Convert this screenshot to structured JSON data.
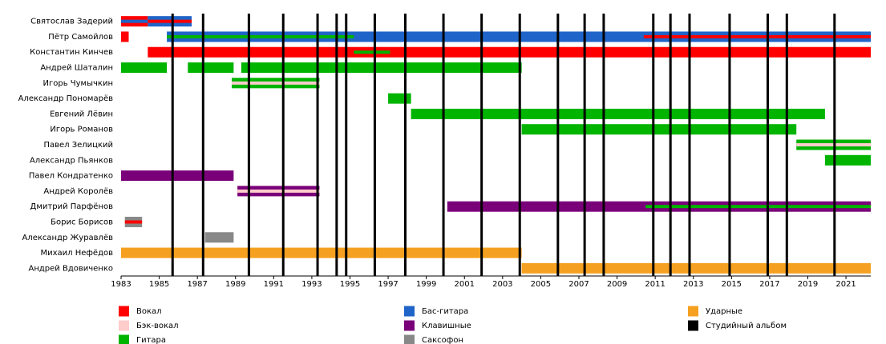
{
  "chart_data": {
    "type": "timeline",
    "xlim": [
      1983,
      2022.3
    ],
    "xticks": [
      1983,
      1985,
      1987,
      1989,
      1991,
      1993,
      1995,
      1997,
      1999,
      2001,
      2003,
      2005,
      2007,
      2009,
      2011,
      2013,
      2015,
      2017,
      2019,
      2021
    ],
    "members": [
      {
        "name": "Святослав Задерий",
        "bars": [
          {
            "start": 1983,
            "end": 1984.4,
            "color": "#ff0000"
          },
          {
            "start": 1984.4,
            "end": 1986.7,
            "color": "#1f64c8"
          },
          {
            "start": 1983,
            "end": 1984.4,
            "color": "#1f64c8",
            "thin": true
          },
          {
            "start": 1984.4,
            "end": 1986.7,
            "color": "#ff0000",
            "thin": true
          }
        ]
      },
      {
        "name": "Пётр Самойлов",
        "bars": [
          {
            "start": 1983,
            "end": 1983.4,
            "color": "#ff0000"
          },
          {
            "start": 1985.4,
            "end": 2022.3,
            "color": "#1f64c8"
          },
          {
            "start": 1985.4,
            "end": 1995.2,
            "color": "#00b400",
            "thin": true
          },
          {
            "start": 2010.4,
            "end": 2022.3,
            "color": "#ff0000",
            "thin": true
          }
        ]
      },
      {
        "name": "Константин Кинчев",
        "bars": [
          {
            "start": 1984.4,
            "end": 2022.3,
            "color": "#ff0000"
          },
          {
            "start": 1995.2,
            "end": 1997.1,
            "color": "#00b400",
            "thin": true
          }
        ]
      },
      {
        "name": "Андрей Шаталин",
        "bars": [
          {
            "start": 1983,
            "end": 1985.4,
            "color": "#00b400"
          },
          {
            "start": 1986.5,
            "end": 1988.9,
            "color": "#00b400"
          },
          {
            "start": 1989.3,
            "end": 2004.0,
            "color": "#00b400"
          }
        ]
      },
      {
        "name": "Игорь Чумычкин",
        "bars": [
          {
            "start": 1988.8,
            "end": 1993.4,
            "color": "#00b400"
          },
          {
            "start": 1988.8,
            "end": 1993.4,
            "color": "#ffcccc",
            "thin": true
          }
        ]
      },
      {
        "name": "Александр Пономарёв",
        "bars": [
          {
            "start": 1997.0,
            "end": 1998.2,
            "color": "#00b400"
          }
        ]
      },
      {
        "name": "Евгений Лёвин",
        "bars": [
          {
            "start": 1998.2,
            "end": 2019.9,
            "color": "#00b400"
          }
        ]
      },
      {
        "name": "Игорь Романов",
        "bars": [
          {
            "start": 2004.0,
            "end": 2018.4,
            "color": "#00b400"
          }
        ]
      },
      {
        "name": "Павел Зелицкий",
        "bars": [
          {
            "start": 2018.4,
            "end": 2022.3,
            "color": "#00b400"
          },
          {
            "start": 2018.4,
            "end": 2022.3,
            "color": "#ffcccc",
            "thin": true
          }
        ]
      },
      {
        "name": "Александр Пьянков",
        "bars": [
          {
            "start": 2019.9,
            "end": 2022.3,
            "color": "#00b400"
          }
        ]
      },
      {
        "name": "Павел Кондратенко",
        "bars": [
          {
            "start": 1983,
            "end": 1988.9,
            "color": "#7a007a"
          }
        ]
      },
      {
        "name": "Андрей Королёв",
        "bars": [
          {
            "start": 1989.1,
            "end": 1993.4,
            "color": "#7a007a"
          },
          {
            "start": 1989.1,
            "end": 1993.4,
            "color": "#ffcccc",
            "thin": true
          }
        ]
      },
      {
        "name": "Дмитрий Парфёнов",
        "bars": [
          {
            "start": 2000.1,
            "end": 2022.3,
            "color": "#7a007a"
          },
          {
            "start": 2010.5,
            "end": 2022.3,
            "color": "#00b400",
            "thin": true
          }
        ]
      },
      {
        "name": "Борис Борисов",
        "bars": [
          {
            "start": 1983.2,
            "end": 1984.1,
            "color": "#888888"
          },
          {
            "start": 1983.2,
            "end": 1984.1,
            "color": "#ff0000",
            "thin": true
          }
        ]
      },
      {
        "name": "Александр Журавлёв",
        "bars": [
          {
            "start": 1987.4,
            "end": 1988.9,
            "color": "#888888"
          }
        ]
      },
      {
        "name": "Михаил Нефёдов",
        "bars": [
          {
            "start": 1983,
            "end": 2004.0,
            "color": "#f5a020"
          }
        ]
      },
      {
        "name": "Андрей Вдовиченко",
        "bars": [
          {
            "start": 2004.0,
            "end": 2022.3,
            "color": "#f5a020"
          }
        ]
      }
    ],
    "albums": {
      "color": "#000000",
      "years": [
        1985.7,
        1987.3,
        1989.7,
        1991.5,
        1993.3,
        1994.3,
        1994.8,
        1996.3,
        1997.9,
        1999.9,
        2001.9,
        2003.9,
        2005.9,
        2007.3,
        2008.3,
        2010.9,
        2011.8,
        2012.8,
        2014.9,
        2016.9,
        2017.9,
        2020.4
      ]
    },
    "legend": [
      {
        "name": "Вокал",
        "color": "#ff0000"
      },
      {
        "name": "Бэк-вокал",
        "color": "#ffcccc"
      },
      {
        "name": "Гитара",
        "color": "#00b400"
      },
      {
        "name": "Бас-гитара",
        "color": "#1f64c8"
      },
      {
        "name": "Клавишные",
        "color": "#7a007a"
      },
      {
        "name": "Саксофон",
        "color": "#888888"
      },
      {
        "name": "Ударные",
        "color": "#f5a020"
      },
      {
        "name": "Студийный альбом",
        "color": "#000000"
      }
    ]
  }
}
